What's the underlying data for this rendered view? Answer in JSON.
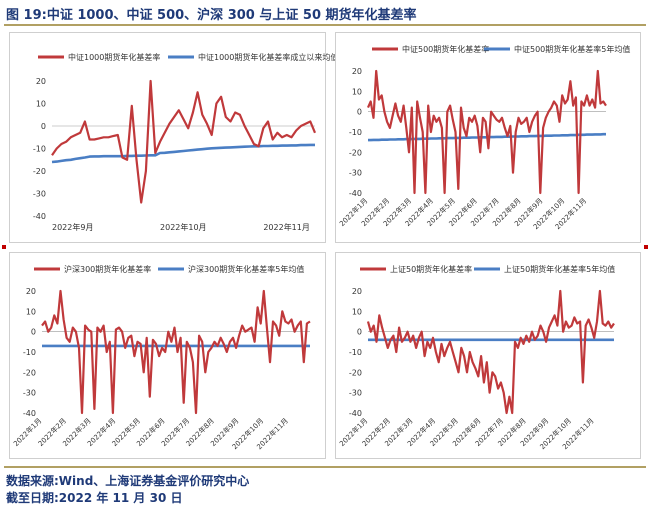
{
  "figure": {
    "title": "图 19:中证 1000、中证 500、沪深 300 与上证 50 期货年化基差率",
    "source": "数据来源:Wind、上海证券基金评价研究中心",
    "date": "截至日期:2022 年 11 月 30 日"
  },
  "colors": {
    "series1": "#c0393b",
    "series2": "#4a7ec4",
    "title": "#1f3a78",
    "rule": "#b1a063"
  },
  "chart_data": [
    {
      "type": "line",
      "ylim": [
        -40,
        20
      ],
      "yticks": [
        -40,
        -30,
        -20,
        -10,
        0,
        10,
        20
      ],
      "x": [
        0,
        1,
        2,
        3,
        4,
        5,
        6,
        7,
        8,
        9,
        10,
        11,
        12,
        13,
        14,
        15,
        16,
        17,
        18,
        19,
        20,
        21,
        22,
        23,
        24,
        25,
        26,
        27,
        28,
        29,
        30,
        31,
        32,
        33,
        34,
        35,
        36,
        37,
        38,
        39,
        40,
        41,
        42,
        43,
        44,
        45,
        46,
        47,
        48,
        49,
        50,
        51,
        52,
        53,
        54,
        55,
        56
      ],
      "xticks": [
        {
          "pos": 0,
          "label": "2022年9月"
        },
        {
          "pos": 23,
          "label": "2022年10月"
        },
        {
          "pos": 45,
          "label": "2022年11月"
        }
      ],
      "series": [
        {
          "name": "中证1000期货年化基差率",
          "values": [
            -13,
            -10,
            -8,
            -7,
            -5,
            -4,
            -3,
            2,
            -6,
            -6,
            -5.5,
            -5,
            -5,
            -4.5,
            -4,
            -14,
            -15,
            9,
            -15,
            -34,
            -20,
            20,
            -12,
            -7,
            -3,
            1,
            4,
            7,
            3,
            -1,
            6,
            15,
            5,
            1,
            -4,
            10,
            13,
            4,
            2,
            6,
            5,
            0,
            -4,
            -8,
            -9,
            -1,
            2,
            -6,
            -3,
            -5,
            -4,
            -5,
            -2,
            0,
            1,
            2,
            -3
          ]
        },
        {
          "name": "中证1000期货年化基差率成立以来均值",
          "values": [
            -16,
            -15.8,
            -15.5,
            -15.2,
            -15,
            -14.6,
            -14.3,
            -14,
            -13.6,
            -13.5,
            -13.5,
            -13.4,
            -13.4,
            -13.4,
            -13.4,
            -13.4,
            -13.3,
            -13.3,
            -13.2,
            -13.2,
            -13.1,
            -13,
            -13,
            -12,
            -11.9,
            -11.7,
            -11.5,
            -11.3,
            -11.1,
            -10.9,
            -10.7,
            -10.5,
            -10.3,
            -10.1,
            -9.9,
            -9.8,
            -9.7,
            -9.6,
            -9.5,
            -9.4,
            -9.3,
            -9.2,
            -9.1,
            -9,
            -9,
            -8.9,
            -8.9,
            -8.8,
            -8.8,
            -8.7,
            -8.7,
            -8.6,
            -8.6,
            -8.5,
            -8.5,
            -8.4,
            -8.4
          ]
        }
      ]
    },
    {
      "type": "line",
      "ylim": [
        -40,
        20
      ],
      "yticks": [
        -40,
        -30,
        -20,
        -10,
        0,
        10,
        20
      ],
      "x": [
        0,
        1,
        2,
        3,
        4,
        5,
        6,
        7,
        8,
        9,
        10,
        11,
        12,
        13,
        14,
        15,
        16,
        17,
        18,
        19,
        20,
        21,
        22,
        23,
        24,
        25,
        26,
        27,
        28,
        29,
        30,
        31,
        32,
        33,
        34,
        35,
        36,
        37,
        38,
        39,
        40,
        41,
        42,
        43,
        44,
        45,
        46,
        47,
        48,
        49,
        50,
        51,
        52,
        53,
        54,
        55,
        56,
        57,
        58,
        59,
        60,
        61,
        62,
        63,
        64,
        65,
        66,
        67,
        68,
        69,
        70,
        71,
        72,
        73,
        74,
        75,
        76,
        77,
        78,
        79,
        80,
        81,
        82,
        83,
        84,
        85,
        86,
        87
      ],
      "xticks": [
        {
          "pos": 0,
          "label": "2022年1月"
        },
        {
          "pos": 8,
          "label": "2022年2月"
        },
        {
          "pos": 16,
          "label": "2022年3月"
        },
        {
          "pos": 24,
          "label": "2022年4月"
        },
        {
          "pos": 32,
          "label": "2022年5月"
        },
        {
          "pos": 40,
          "label": "2022年6月"
        },
        {
          "pos": 48,
          "label": "2022年7月"
        },
        {
          "pos": 56,
          "label": "2022年8月"
        },
        {
          "pos": 64,
          "label": "2022年9月"
        },
        {
          "pos": 72,
          "label": "2022年10月"
        },
        {
          "pos": 80,
          "label": "2022年11月"
        }
      ],
      "series": [
        {
          "name": "中证500期货年化基差率",
          "values": [
            2,
            5,
            -3,
            20,
            6,
            8,
            0,
            -5,
            -8,
            -2,
            4,
            -2,
            -5,
            3,
            -8,
            -20,
            2,
            -40,
            5,
            -3,
            -10,
            -40,
            3,
            -10,
            -2,
            -5,
            -3,
            -8,
            -40,
            0,
            3,
            -4,
            -10,
            -38,
            2,
            -8,
            -12,
            -3,
            -5,
            -2,
            -7,
            -20,
            -3,
            -5,
            -18,
            0,
            -2,
            -4,
            -5,
            -3,
            -8,
            -12,
            -7,
            -30,
            -10,
            -3,
            -6,
            -5,
            -3,
            -10,
            -5,
            -2,
            0,
            -40,
            -8,
            -3,
            0,
            2,
            5,
            3,
            -5,
            8,
            4,
            6,
            15,
            3,
            7,
            -40,
            5,
            3,
            8,
            3,
            6,
            2,
            20,
            4,
            5,
            3
          ]
        },
        {
          "name": "中证500期货年化基差率5年均值",
          "values": [
            -14,
            -14,
            -13.9,
            -13.9,
            -13.9,
            -13.8,
            -13.8,
            -13.8,
            -13.7,
            -13.7,
            -13.7,
            -13.6,
            -13.6,
            -13.6,
            -13.5,
            -13.5,
            -13.5,
            -13.4,
            -13.4,
            -13.4,
            -13.3,
            -13.3,
            -13.3,
            -13.2,
            -13.2,
            -13.2,
            -13.1,
            -13.1,
            -13.1,
            -13,
            -13,
            -13,
            -12.9,
            -12.9,
            -12.9,
            -12.8,
            -12.8,
            -12.8,
            -12.7,
            -12.7,
            -12.7,
            -12.6,
            -12.6,
            -12.6,
            -12.5,
            -12.5,
            -12.5,
            -12.4,
            -12.4,
            -12.4,
            -12.3,
            -12.3,
            -12.3,
            -12.2,
            -12.2,
            -12.2,
            -12.1,
            -12.1,
            -12.1,
            -12,
            -12,
            -12,
            -11.9,
            -11.9,
            -11.9,
            -11.8,
            -11.8,
            -11.8,
            -11.7,
            -11.7,
            -11.7,
            -11.6,
            -11.6,
            -11.6,
            -11.5,
            -11.5,
            -11.5,
            -11.4,
            -11.4,
            -11.4,
            -11.3,
            -11.3,
            -11.3,
            -11.2,
            -11.2,
            -11.2,
            -11.1,
            -11.1
          ]
        }
      ]
    },
    {
      "type": "line",
      "ylim": [
        -40,
        20
      ],
      "yticks": [
        -40,
        -30,
        -20,
        -10,
        0,
        10,
        20
      ],
      "x": [
        0,
        1,
        2,
        3,
        4,
        5,
        6,
        7,
        8,
        9,
        10,
        11,
        12,
        13,
        14,
        15,
        16,
        17,
        18,
        19,
        20,
        21,
        22,
        23,
        24,
        25,
        26,
        27,
        28,
        29,
        30,
        31,
        32,
        33,
        34,
        35,
        36,
        37,
        38,
        39,
        40,
        41,
        42,
        43,
        44,
        45,
        46,
        47,
        48,
        49,
        50,
        51,
        52,
        53,
        54,
        55,
        56,
        57,
        58,
        59,
        60,
        61,
        62,
        63,
        64,
        65,
        66,
        67,
        68,
        69,
        70,
        71,
        72,
        73,
        74,
        75,
        76,
        77,
        78,
        79,
        80,
        81,
        82,
        83,
        84,
        85,
        86,
        87
      ],
      "xticks": [
        {
          "pos": 0,
          "label": "2022年1月"
        },
        {
          "pos": 8,
          "label": "2022年2月"
        },
        {
          "pos": 16,
          "label": "2022年3月"
        },
        {
          "pos": 24,
          "label": "2022年4月"
        },
        {
          "pos": 32,
          "label": "2022年5月"
        },
        {
          "pos": 40,
          "label": "2022年6月"
        },
        {
          "pos": 48,
          "label": "2022年7月"
        },
        {
          "pos": 56,
          "label": "2022年8月"
        },
        {
          "pos": 64,
          "label": "2022年9月"
        },
        {
          "pos": 72,
          "label": "2022年10月"
        },
        {
          "pos": 80,
          "label": "2022年11月"
        }
      ],
      "series": [
        {
          "name": "沪深300期货年化基差率",
          "values": [
            3,
            5,
            0,
            2,
            8,
            4,
            20,
            6,
            -3,
            -5,
            2,
            0,
            -8,
            -40,
            3,
            1,
            0,
            -38,
            2,
            0,
            3,
            -10,
            -5,
            -40,
            1,
            2,
            0,
            -8,
            -3,
            -2,
            -12,
            -5,
            -6,
            -20,
            -3,
            -32,
            -4,
            -6,
            -12,
            -8,
            -10,
            0,
            -5,
            2,
            -10,
            -3,
            -35,
            -5,
            -8,
            -15,
            -40,
            -2,
            -5,
            -20,
            -10,
            -8,
            -5,
            -7,
            -3,
            -6,
            -10,
            -5,
            -3,
            -8,
            -2,
            3,
            0,
            1,
            2,
            -5,
            12,
            4,
            20,
            2,
            -15,
            5,
            3,
            -2,
            10,
            5,
            4,
            6,
            0,
            3,
            5,
            -15,
            4,
            5
          ]
        },
        {
          "name": "沪深300期货年化基差率5年均值",
          "values": [
            -7,
            -7,
            -7,
            -7,
            -7,
            -7,
            -7,
            -7,
            -7,
            -7,
            -7,
            -7,
            -7,
            -7,
            -7,
            -7,
            -7,
            -7,
            -7,
            -7,
            -7,
            -7,
            -7,
            -7,
            -7,
            -7,
            -7,
            -7,
            -7,
            -7,
            -7,
            -7,
            -7,
            -7,
            -7,
            -7,
            -7,
            -7,
            -7,
            -7,
            -7,
            -7,
            -7,
            -7,
            -7,
            -7,
            -7,
            -7,
            -7,
            -7,
            -7,
            -7,
            -7,
            -7,
            -7,
            -7,
            -7,
            -7,
            -7,
            -7,
            -7,
            -7,
            -7,
            -7,
            -7,
            -7,
            -7,
            -7,
            -7,
            -7,
            -7,
            -7,
            -7,
            -7,
            -7,
            -7,
            -7,
            -7,
            -7,
            -7,
            -7,
            -7,
            -7,
            -7,
            -7,
            -7,
            -7,
            -7
          ]
        }
      ]
    },
    {
      "type": "line",
      "ylim": [
        -40,
        20
      ],
      "yticks": [
        -40,
        -30,
        -20,
        -10,
        0,
        10,
        20
      ],
      "x": [
        0,
        1,
        2,
        3,
        4,
        5,
        6,
        7,
        8,
        9,
        10,
        11,
        12,
        13,
        14,
        15,
        16,
        17,
        18,
        19,
        20,
        21,
        22,
        23,
        24,
        25,
        26,
        27,
        28,
        29,
        30,
        31,
        32,
        33,
        34,
        35,
        36,
        37,
        38,
        39,
        40,
        41,
        42,
        43,
        44,
        45,
        46,
        47,
        48,
        49,
        50,
        51,
        52,
        53,
        54,
        55,
        56,
        57,
        58,
        59,
        60,
        61,
        62,
        63,
        64,
        65,
        66,
        67,
        68,
        69,
        70,
        71,
        72,
        73,
        74,
        75,
        76,
        77,
        78,
        79,
        80,
        81,
        82,
        83,
        84,
        85,
        86,
        87
      ],
      "xticks": [
        {
          "pos": 0,
          "label": "2022年1月"
        },
        {
          "pos": 8,
          "label": "2022年2月"
        },
        {
          "pos": 16,
          "label": "2022年3月"
        },
        {
          "pos": 24,
          "label": "2022年4月"
        },
        {
          "pos": 32,
          "label": "2022年5月"
        },
        {
          "pos": 40,
          "label": "2022年6月"
        },
        {
          "pos": 48,
          "label": "2022年7月"
        },
        {
          "pos": 56,
          "label": "2022年8月"
        },
        {
          "pos": 64,
          "label": "2022年9月"
        },
        {
          "pos": 72,
          "label": "2022年10月"
        },
        {
          "pos": 80,
          "label": "2022年11月"
        }
      ],
      "series": [
        {
          "name": "上证50期货年化基差率",
          "values": [
            5,
            0,
            3,
            -5,
            8,
            2,
            -3,
            -8,
            -4,
            -2,
            -10,
            2,
            -5,
            -3,
            0,
            -5,
            -2,
            -8,
            -3,
            0,
            -12,
            -5,
            -8,
            -3,
            -10,
            -15,
            -6,
            -12,
            -8,
            -5,
            -10,
            -15,
            -20,
            -8,
            -12,
            -20,
            -10,
            -15,
            -18,
            -22,
            -12,
            -25,
            -15,
            -30,
            -20,
            -22,
            -28,
            -25,
            -30,
            -40,
            -32,
            -40,
            -5,
            -8,
            -3,
            -6,
            -2,
            -5,
            0,
            -4,
            -2,
            3,
            0,
            -5,
            2,
            5,
            8,
            3,
            20,
            0,
            5,
            2,
            3,
            7,
            4,
            5,
            -25,
            3,
            6,
            2,
            -3,
            5,
            20,
            4,
            3,
            5,
            2,
            4
          ]
        },
        {
          "name": "上证50期货年化基差率5年均值",
          "values": [
            -4,
            -4,
            -4,
            -4,
            -4,
            -4,
            -4,
            -4,
            -4,
            -4,
            -4,
            -4,
            -4,
            -4,
            -4,
            -4,
            -4,
            -4,
            -4,
            -4,
            -4,
            -4,
            -4,
            -4,
            -4,
            -4,
            -4,
            -4,
            -4,
            -4,
            -4,
            -4,
            -4,
            -4,
            -4,
            -4,
            -4,
            -4,
            -4,
            -4,
            -4,
            -4,
            -4,
            -4,
            -4,
            -4,
            -4,
            -4,
            -4,
            -4,
            -4,
            -4,
            -4,
            -4,
            -4,
            -4,
            -4,
            -4,
            -4,
            -4,
            -4,
            -4,
            -4,
            -4,
            -4,
            -4,
            -4,
            -4,
            -4,
            -4,
            -4,
            -4,
            -4,
            -4,
            -4,
            -4,
            -4,
            -4,
            -4,
            -4,
            -4,
            -4,
            -4,
            -4,
            -4,
            -4,
            -4,
            -4
          ]
        }
      ]
    }
  ]
}
